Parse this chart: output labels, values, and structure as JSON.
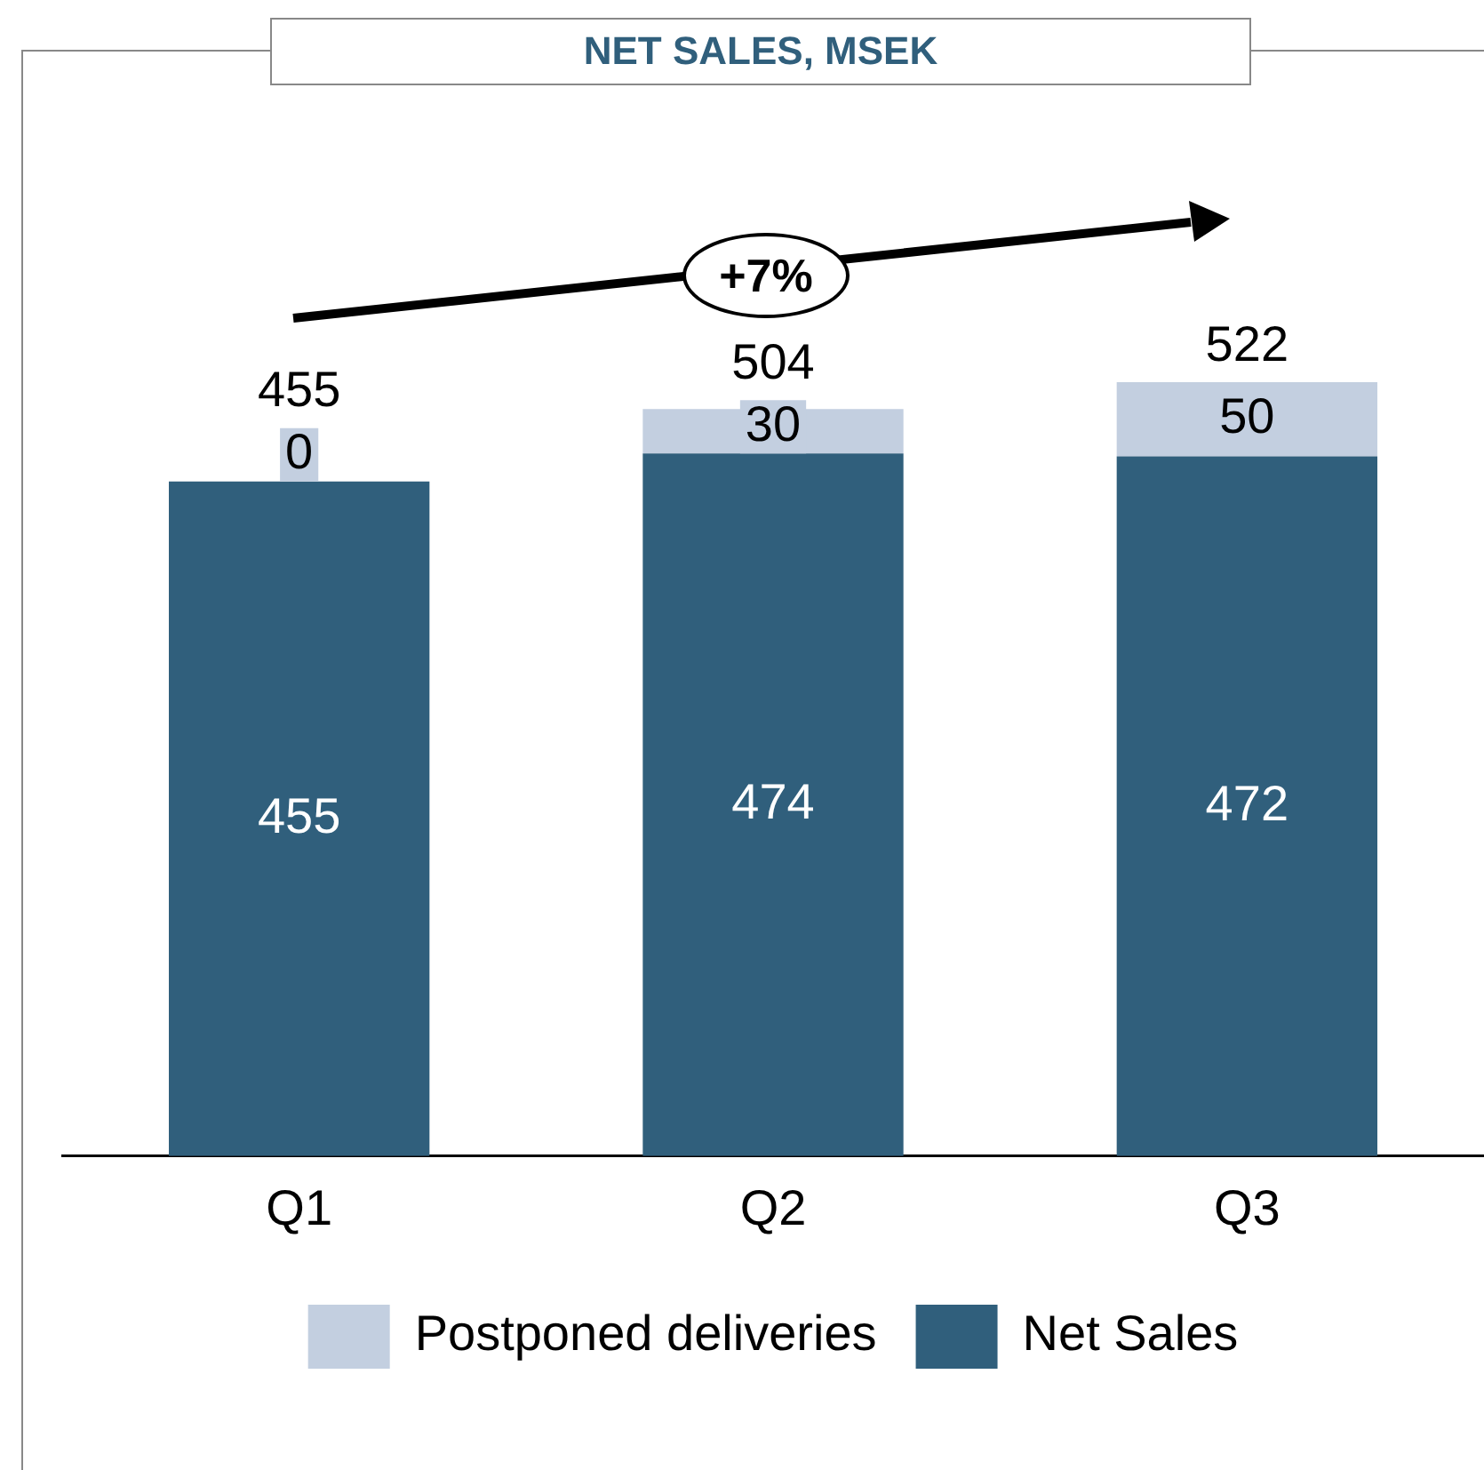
{
  "chart_data": {
    "type": "bar",
    "title": "NET SALES, MSEK",
    "categories": [
      "Q1",
      "Q2",
      "Q3"
    ],
    "stacked": true,
    "series": [
      {
        "name": "Net Sales",
        "color": "#305f7c",
        "values": [
          455,
          474,
          472
        ]
      },
      {
        "name": "Postponed deliveries",
        "color": "#c3cfe0",
        "values": [
          0,
          30,
          50
        ]
      }
    ],
    "data_labels": true,
    "totals": [
      "455",
      "504",
      "522"
    ],
    "annotations": [
      "+7%"
    ],
    "legend": "bottom",
    "grid": false
  }
}
